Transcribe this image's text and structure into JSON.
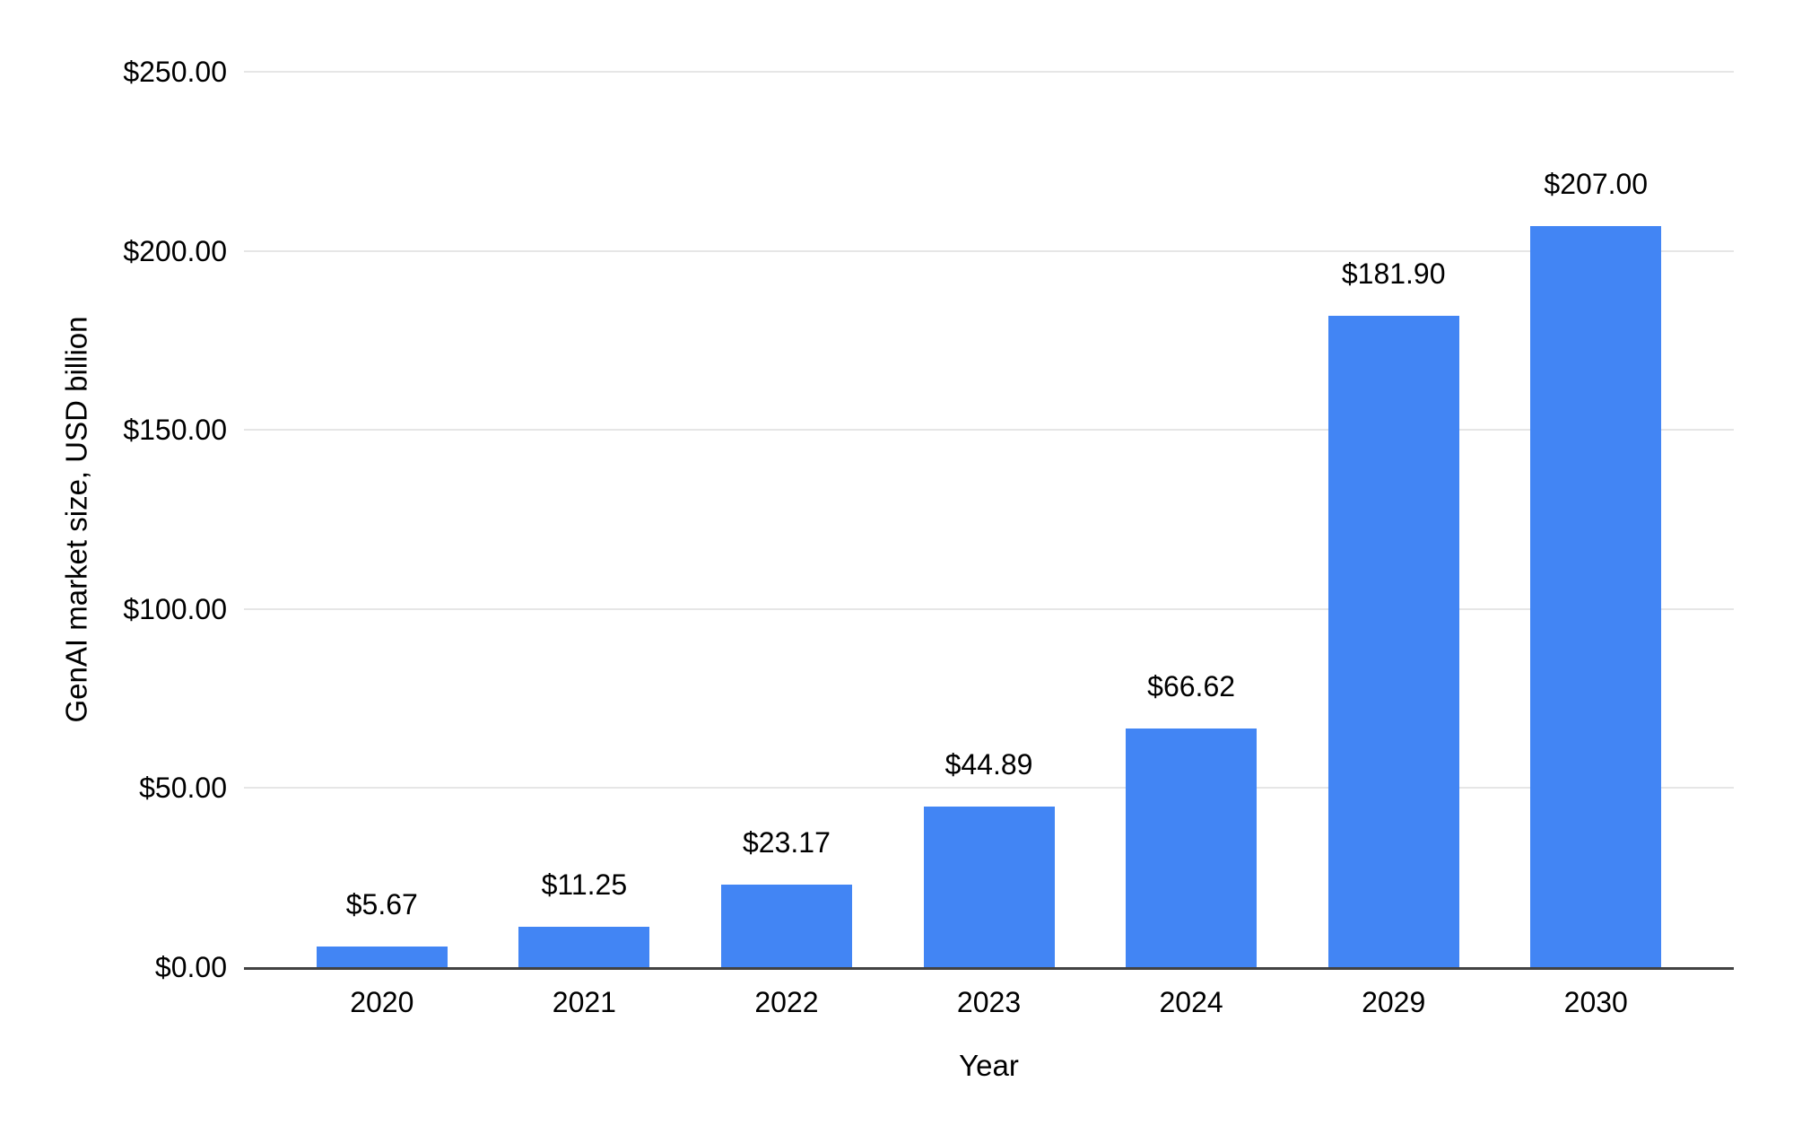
{
  "chart_data": {
    "type": "bar",
    "title": "",
    "xlabel": "Year",
    "ylabel": "GenAI market size, USD billion",
    "categories": [
      "2020",
      "2021",
      "2022",
      "2023",
      "2024",
      "2029",
      "2030"
    ],
    "series": [
      {
        "name": "GenAI market size",
        "values": [
          5.67,
          11.25,
          23.17,
          44.89,
          66.62,
          181.9,
          207.0
        ],
        "value_labels": [
          "$5.67",
          "$11.25",
          "$23.17",
          "$44.89",
          "$66.62",
          "$181.90",
          "$207.00"
        ]
      }
    ],
    "ylim": [
      0,
      250
    ],
    "yticks": [
      {
        "value": 0,
        "label": "$0.00"
      },
      {
        "value": 50,
        "label": "$50.00"
      },
      {
        "value": 100,
        "label": "$100.00"
      },
      {
        "value": 150,
        "label": "$150.00"
      },
      {
        "value": 200,
        "label": "$200.00"
      },
      {
        "value": 250,
        "label": "$250.00"
      }
    ],
    "grid": true,
    "legend_position": "none",
    "colors": {
      "bar": "#4285f4",
      "gridline": "#e6e6e6",
      "axis_line": "#424242",
      "text": "#000000",
      "background": "#ffffff"
    }
  }
}
